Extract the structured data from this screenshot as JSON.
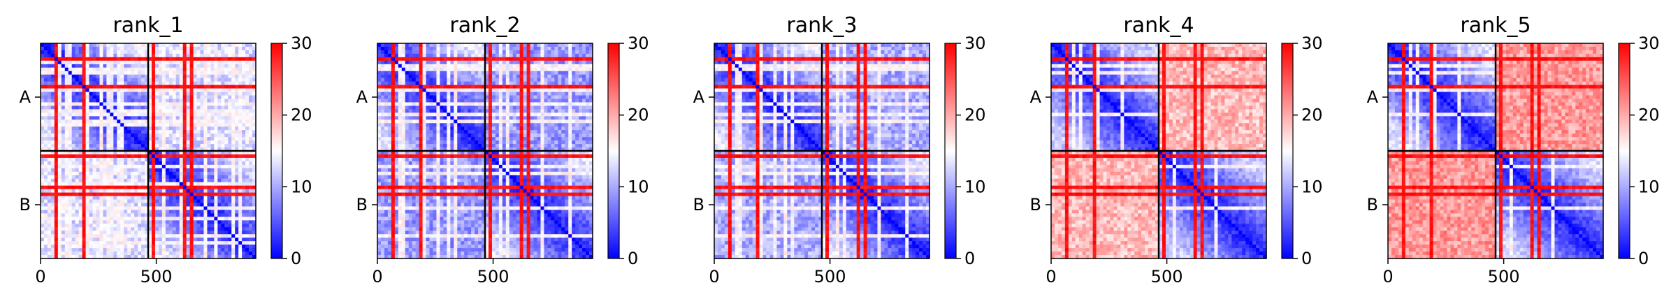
{
  "chart_data": [
    {
      "type": "heatmap",
      "title": "rank_1",
      "x_ticks": [
        "0",
        "500"
      ],
      "y_ticks": [
        "A",
        "B"
      ],
      "colorbar": {
        "min": 0,
        "max": 30,
        "ticks": [
          "0",
          "10",
          "20",
          "30"
        ],
        "colors": [
          "#0000ff",
          "#ffffff",
          "#ff0000"
        ]
      },
      "matrix_size": 930,
      "chain_boundary": 465,
      "red_lines": [
        60,
        175,
        180,
        480,
        620,
        640
      ],
      "white_lines": [
        80,
        110,
        120,
        190,
        200,
        260,
        290,
        300,
        330,
        340,
        520,
        600,
        700,
        750,
        820,
        860
      ],
      "level_AB": 13,
      "level_BB_offdiag": 9
    },
    {
      "type": "heatmap",
      "title": "rank_2",
      "x_ticks": [
        "0",
        "500"
      ],
      "y_ticks": [
        "A",
        "B"
      ],
      "colorbar": {
        "min": 0,
        "max": 30,
        "ticks": [
          "0",
          "10",
          "20",
          "30"
        ],
        "colors": [
          "#0000ff",
          "#ffffff",
          "#ff0000"
        ]
      },
      "matrix_size": 930,
      "chain_boundary": 465,
      "red_lines": [
        60,
        175,
        180,
        480,
        620,
        640
      ],
      "white_lines": [
        90,
        110,
        200,
        260,
        300,
        330,
        520,
        560,
        700,
        820
      ],
      "level_AB": 9,
      "level_BB_offdiag": 8
    },
    {
      "type": "heatmap",
      "title": "rank_3",
      "x_ticks": [
        "0",
        "500"
      ],
      "y_ticks": [
        "A",
        "B"
      ],
      "colorbar": {
        "min": 0,
        "max": 30,
        "ticks": [
          "0",
          "10",
          "20",
          "30"
        ],
        "colors": [
          "#0000ff",
          "#ffffff",
          "#ff0000"
        ]
      },
      "matrix_size": 930,
      "chain_boundary": 465,
      "red_lines": [
        60,
        175,
        180,
        480,
        620,
        640
      ],
      "white_lines": [
        90,
        110,
        200,
        260,
        300,
        330,
        520,
        560,
        700,
        820
      ],
      "level_AB": 10,
      "level_BB_offdiag": 8
    },
    {
      "type": "heatmap",
      "title": "rank_4",
      "x_ticks": [
        "0",
        "500"
      ],
      "y_ticks": [
        "A",
        "B"
      ],
      "colorbar": {
        "min": 0,
        "max": 30,
        "ticks": [
          "0",
          "10",
          "20",
          "30"
        ],
        "colors": [
          "#0000ff",
          "#ffffff",
          "#ff0000"
        ]
      },
      "matrix_size": 930,
      "chain_boundary": 465,
      "red_lines": [
        60,
        175,
        180,
        480,
        620,
        640
      ],
      "white_lines": [
        90,
        120,
        200,
        300,
        520,
        700
      ],
      "level_AB": 19,
      "level_BB_offdiag": 6
    },
    {
      "type": "heatmap",
      "title": "rank_5",
      "x_ticks": [
        "0",
        "500"
      ],
      "y_ticks": [
        "A",
        "B"
      ],
      "colorbar": {
        "min": 0,
        "max": 30,
        "ticks": [
          "0",
          "10",
          "20",
          "30"
        ],
        "colors": [
          "#0000ff",
          "#ffffff",
          "#ff0000"
        ]
      },
      "matrix_size": 930,
      "chain_boundary": 465,
      "red_lines": [
        60,
        175,
        180,
        480,
        620,
        640
      ],
      "white_lines": [
        90,
        120,
        200,
        300,
        520,
        700
      ],
      "level_AB": 21,
      "level_BB_offdiag": 7
    }
  ]
}
